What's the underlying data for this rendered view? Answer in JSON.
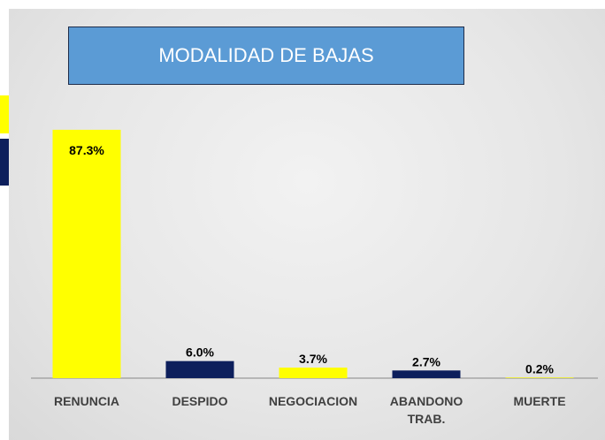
{
  "chart_data": {
    "type": "bar",
    "title": "MODALIDAD DE BAJAS",
    "categories": [
      "RENUNCIA",
      "DESPIDO",
      "NEGOCIACION",
      "ABANDONO TRAB.",
      "MUERTE"
    ],
    "values": [
      87.3,
      6.0,
      3.7,
      2.7,
      0.2
    ],
    "value_labels": [
      "87.3%",
      "6.0%",
      "3.7%",
      "2.7%",
      "0.2%"
    ],
    "colors": [
      "#ffff00",
      "#0d1f5c",
      "#ffff00",
      "#0d1f5c",
      "#ffff00"
    ]
  }
}
